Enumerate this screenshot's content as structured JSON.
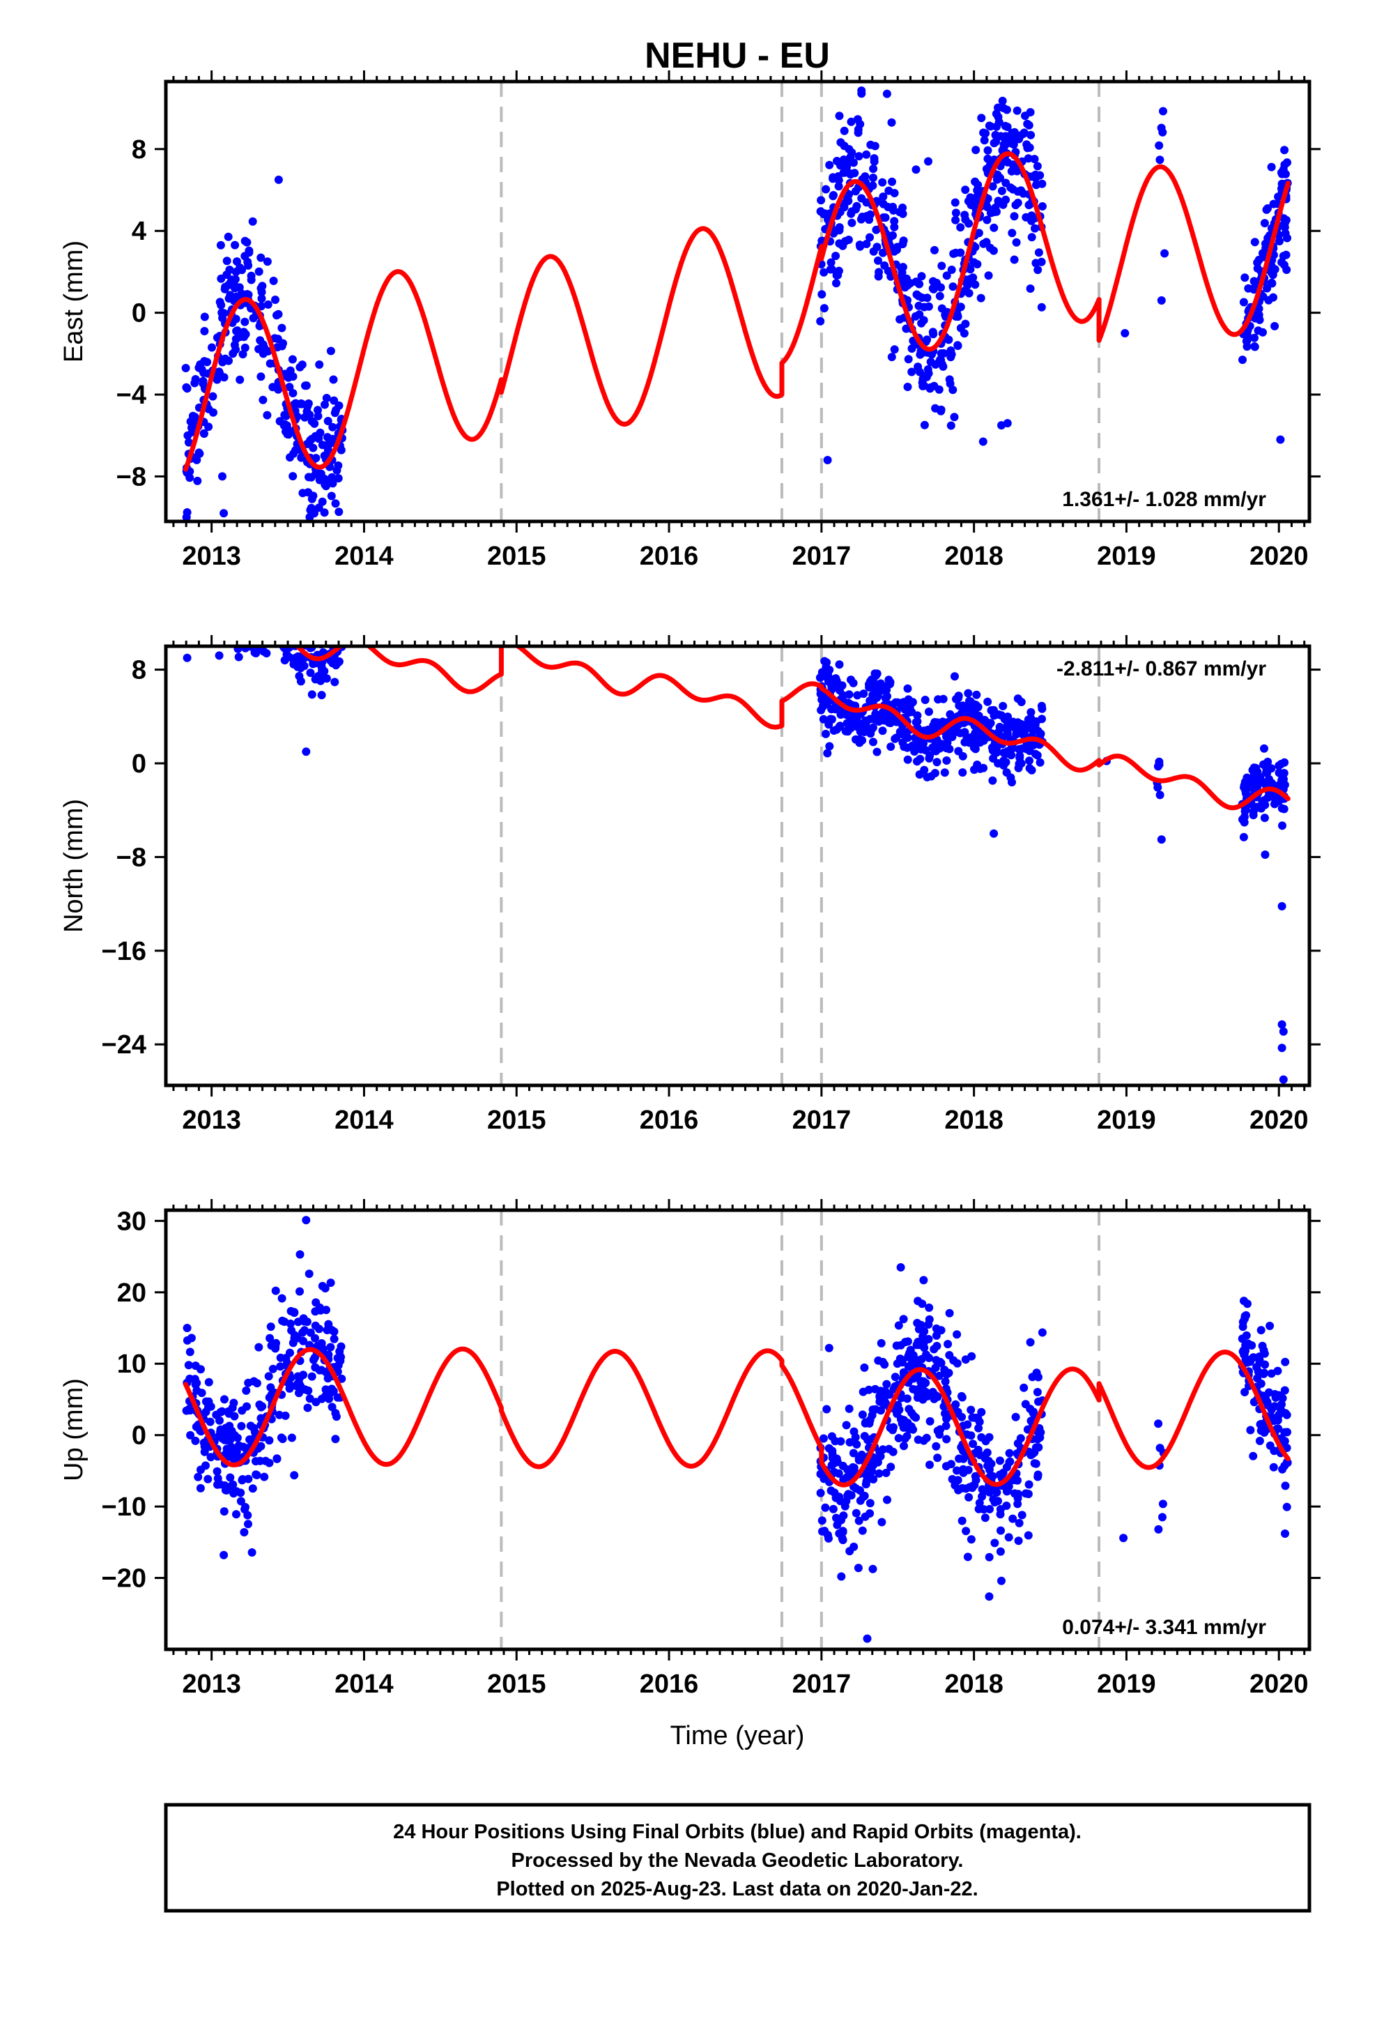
{
  "title": "NEHU - EU",
  "xlabel": "Time (year)",
  "colors": {
    "data": "#0000ff",
    "model": "#ff0000",
    "breaks": "#bbbbbb"
  },
  "breaks": [
    2014.9,
    2016.74,
    2017.0,
    2018.82
  ],
  "caption": {
    "line1": "24 Hour Positions Using Final Orbits (blue) and Rapid Orbits (magenta).",
    "line2": "Processed by the Nevada Geodetic Laboratory.",
    "line3": "Plotted on 2025-Aug-23. Last data on 2020-Jan-22."
  },
  "chart_data": [
    {
      "type": "scatter",
      "key": "east",
      "ylabel": "East (mm)",
      "xlim": [
        2012.7,
        2020.2
      ],
      "ylim": [
        -10.2,
        11.3
      ],
      "xticks": [
        "2013",
        "2014",
        "2015",
        "2016",
        "2017",
        "2018",
        "2019",
        "2020"
      ],
      "yticks": [
        "8",
        "4",
        "0",
        "−4",
        "−8"
      ],
      "ytick_values": [
        8,
        4,
        0,
        -4,
        -8
      ],
      "rate": "1.361+/- 1.028 mm/yr",
      "rate_position": "bottom-right",
      "model": {
        "name": "",
        "segments": [
          {
            "t0": 2012.83,
            "t1": 2014.9,
            "a": 0,
            "b": 1.361,
            "S": 4.33,
            "C": 0.96,
            "S2": 0,
            "C2": 0
          },
          {
            "t0": 2014.9,
            "t1": 2016.74,
            "a": -0.62,
            "b": 1.361,
            "S": 4.33,
            "C": 0.96,
            "S2": 0,
            "C2": 0
          },
          {
            "t0": 2016.74,
            "t1": 2017.0,
            "a": 0.92,
            "b": 1.361,
            "S": 4.33,
            "C": 0.96,
            "S2": 0,
            "C2": 0
          },
          {
            "t0": 2017.0,
            "t1": 2018.82,
            "a": 0.32,
            "b": 1.361,
            "S": 4.33,
            "C": 0.96,
            "S2": 0,
            "C2": 0
          },
          {
            "t0": 2018.82,
            "t1": 2020.06,
            "a": -1.68,
            "b": 1.361,
            "S": 4.33,
            "C": 0.96,
            "S2": 0,
            "C2": 0
          }
        ]
      },
      "series": [
        {
          "clusters": [
            {
              "t0": 2012.83,
              "t1": 2013.86,
              "spread": 1.7,
              "n": 320,
              "offset": 0.3
            },
            {
              "t0": 2016.99,
              "t1": 2018.45,
              "spread": 1.9,
              "n": 500,
              "offset": 0.0
            },
            {
              "t0": 2019.2,
              "t1": 2019.25,
              "spread": 0.9,
              "n": 5,
              "offset": 1.2
            },
            {
              "t0": 2019.76,
              "t1": 2020.06,
              "spread": 1.6,
              "n": 120,
              "offset": 0.0
            }
          ],
          "points": [
            {
              "x": 2012.84,
              "y": -3.7
            },
            {
              "x": 2012.85,
              "y": -6.9
            },
            {
              "x": 2013.08,
              "y": -9.8
            },
            {
              "x": 2013.07,
              "y": -8.0
            },
            {
              "x": 2013.44,
              "y": 6.5
            },
            {
              "x": 2013.79,
              "y": -7.2
            },
            {
              "x": 2017.04,
              "y": -7.2
            },
            {
              "x": 2017.43,
              "y": 10.7
            },
            {
              "x": 2017.46,
              "y": 9.3
            },
            {
              "x": 2017.62,
              "y": 7.0
            },
            {
              "x": 2017.7,
              "y": 7.4
            },
            {
              "x": 2017.99,
              "y": 3.0
            },
            {
              "x": 2018.06,
              "y": -6.3
            },
            {
              "x": 2018.18,
              "y": -5.5
            },
            {
              "x": 2018.22,
              "y": -5.4
            },
            {
              "x": 2018.37,
              "y": 9.8
            },
            {
              "x": 2018.25,
              "y": 3.9
            },
            {
              "x": 2018.33,
              "y": 8.8
            },
            {
              "x": 2019.25,
              "y": 2.9
            },
            {
              "x": 2019.23,
              "y": 0.6
            },
            {
              "x": 2018.99,
              "y": -1.0
            },
            {
              "x": 2020.03,
              "y": 7.0
            },
            {
              "x": 2020.02,
              "y": 6.3
            },
            {
              "x": 2020.01,
              "y": -6.2
            },
            {
              "x": 2020.04,
              "y": 4.4
            },
            {
              "x": 2020.05,
              "y": 2.1
            }
          ]
        }
      ]
    },
    {
      "type": "scatter",
      "key": "north",
      "ylabel": "North (mm)",
      "xlim": [
        2012.7,
        2020.2
      ],
      "ylim": [
        -27.5,
        10.0
      ],
      "xticks": [
        "2013",
        "2014",
        "2015",
        "2016",
        "2017",
        "2018",
        "2019",
        "2020"
      ],
      "yticks": [
        "8",
        "0",
        "−8",
        "−16",
        "−24"
      ],
      "ytick_values": [
        8,
        0,
        -8,
        -16,
        -24
      ],
      "rate": "-2.811+/- 0.867 mm/yr",
      "rate_position": "top-right",
      "model": {
        "name": "",
        "segments": [
          {
            "t0": 2012.83,
            "t1": 2014.9,
            "a": 3.7,
            "b": -2.811,
            "S": 0.36,
            "C": 0.42,
            "S2": -0.55,
            "C2": 0.55
          },
          {
            "t0": 2014.9,
            "t1": 2016.74,
            "a": 6.3,
            "b": -2.811,
            "S": 0.36,
            "C": 0.42,
            "S2": -0.55,
            "C2": 0.55
          },
          {
            "t0": 2016.74,
            "t1": 2017.0,
            "a": 8.4,
            "b": -2.811,
            "S": 0.36,
            "C": 0.42,
            "S2": -0.55,
            "C2": 0.55
          },
          {
            "t0": 2017.0,
            "t1": 2018.82,
            "a": 8.25,
            "b": -2.811,
            "S": 0.36,
            "C": 0.42,
            "S2": -0.55,
            "C2": 0.55
          },
          {
            "t0": 2018.82,
            "t1": 2020.06,
            "a": 7.85,
            "b": -2.811,
            "S": 0.36,
            "C": 0.42,
            "S2": -0.55,
            "C2": 0.55
          }
        ]
      },
      "series": [
        {
          "clusters": [
            {
              "t0": 2012.83,
              "t1": 2013.86,
              "spread": 1.2,
              "n": 320,
              "offset": 0.0
            },
            {
              "t0": 2016.99,
              "t1": 2018.45,
              "spread": 1.5,
              "n": 500,
              "offset": -0.2
            },
            {
              "t0": 2019.2,
              "t1": 2019.25,
              "spread": 1.0,
              "n": 5,
              "offset": 0.5
            },
            {
              "t0": 2019.76,
              "t1": 2020.04,
              "spread": 1.3,
              "n": 110,
              "offset": 0.3
            }
          ],
          "points": [
            {
              "x": 2012.84,
              "y": 9.0
            },
            {
              "x": 2013.05,
              "y": 9.2
            },
            {
              "x": 2013.55,
              "y": 9.0
            },
            {
              "x": 2013.62,
              "y": 1.0
            },
            {
              "x": 2013.83,
              "y": 8.6
            },
            {
              "x": 2017.04,
              "y": 5.6
            },
            {
              "x": 2017.42,
              "y": 4.8
            },
            {
              "x": 2017.96,
              "y": 4.1
            },
            {
              "x": 2018.13,
              "y": -6.0
            },
            {
              "x": 2018.87,
              "y": 0.2
            },
            {
              "x": 2019.22,
              "y": -2.7
            },
            {
              "x": 2019.23,
              "y": -6.5
            },
            {
              "x": 2019.91,
              "y": -7.8
            },
            {
              "x": 2020.0,
              "y": -0.2
            },
            {
              "x": 2020.02,
              "y": -12.2
            },
            {
              "x": 2020.02,
              "y": -22.3
            },
            {
              "x": 2020.03,
              "y": -22.9
            },
            {
              "x": 2020.02,
              "y": -24.3
            },
            {
              "x": 2020.03,
              "y": -27.0
            }
          ]
        }
      ]
    },
    {
      "type": "scatter",
      "key": "up",
      "ylabel": "Up (mm)",
      "xlim": [
        2012.7,
        2020.2
      ],
      "ylim": [
        -30,
        31.5
      ],
      "xticks": [
        "2013",
        "2014",
        "2015",
        "2016",
        "2017",
        "2018",
        "2019",
        "2020"
      ],
      "yticks": [
        "30",
        "20",
        "10",
        "0",
        "−10",
        "−20"
      ],
      "ytick_values": [
        30,
        20,
        10,
        0,
        -10,
        -20
      ],
      "rate": "0.074+/- 3.341 mm/yr",
      "rate_position": "bottom-right",
      "model": {
        "name": "",
        "segments": [
          {
            "t0": 2012.83,
            "t1": 2014.9,
            "a": 4.1,
            "b": 0.074,
            "S": -6.4,
            "C": -4.9,
            "S2": 0,
            "C2": 0
          },
          {
            "t0": 2014.9,
            "t1": 2016.74,
            "a": 3.7,
            "b": 0.074,
            "S": -6.4,
            "C": -4.9,
            "S2": 0,
            "C2": 0
          },
          {
            "t0": 2016.74,
            "t1": 2017.0,
            "a": 3.0,
            "b": 0.074,
            "S": -6.4,
            "C": -4.9,
            "S2": 0,
            "C2": 0
          },
          {
            "t0": 2017.0,
            "t1": 2018.82,
            "a": 1.0,
            "b": 0.074,
            "S": -6.4,
            "C": -4.9,
            "S2": 0,
            "C2": 0
          },
          {
            "t0": 2018.82,
            "t1": 2020.06,
            "a": 3.3,
            "b": 0.074,
            "S": -6.4,
            "C": -4.9,
            "S2": 0,
            "C2": 0
          }
        ]
      },
      "series": [
        {
          "clusters": [
            {
              "t0": 2012.83,
              "t1": 2013.86,
              "spread": 4.8,
              "n": 320,
              "offset": 0.0
            },
            {
              "t0": 2016.99,
              "t1": 2018.45,
              "spread": 5.0,
              "n": 500,
              "offset": 0.0
            },
            {
              "t0": 2019.2,
              "t1": 2019.25,
              "spread": 3.5,
              "n": 5,
              "offset": -3.0
            },
            {
              "t0": 2019.76,
              "t1": 2020.06,
              "spread": 4.2,
              "n": 110,
              "offset": 2.0
            }
          ],
          "points": [
            {
              "x": 2012.84,
              "y": 15.0
            },
            {
              "x": 2012.85,
              "y": 9.8
            },
            {
              "x": 2013.08,
              "y": -16.8
            },
            {
              "x": 2013.58,
              "y": 25.3
            },
            {
              "x": 2013.62,
              "y": 30.1
            },
            {
              "x": 2013.64,
              "y": 22.6
            },
            {
              "x": 2017.05,
              "y": 12.2
            },
            {
              "x": 2017.13,
              "y": -19.8
            },
            {
              "x": 2017.3,
              "y": -28.5
            },
            {
              "x": 2017.52,
              "y": 23.5
            },
            {
              "x": 2017.67,
              "y": 21.7
            },
            {
              "x": 2017.66,
              "y": 18.4
            },
            {
              "x": 2018.1,
              "y": -22.6
            },
            {
              "x": 2018.18,
              "y": -20.4
            },
            {
              "x": 2018.37,
              "y": 13.0
            },
            {
              "x": 2018.98,
              "y": -14.4
            },
            {
              "x": 2019.21,
              "y": -13.2
            },
            {
              "x": 2019.22,
              "y": -1.8
            },
            {
              "x": 2019.76,
              "y": 13.5
            },
            {
              "x": 2019.94,
              "y": 15.3
            },
            {
              "x": 2020.04,
              "y": -13.8
            }
          ]
        }
      ]
    }
  ]
}
